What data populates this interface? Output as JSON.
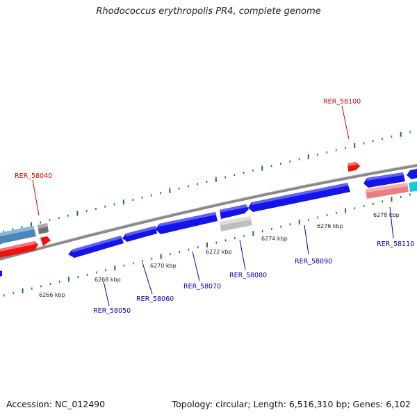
{
  "title": "Rhodococcus erythropolis PR4, complete genome",
  "footer": {
    "accession": "Accession: NC_012490",
    "summary": "Topology: circular; Length: 6,516,310 bp; Genes: 6,102"
  },
  "colors": {
    "background": "#ffffff",
    "backbone": "#888888",
    "tick": "#1a7a1a",
    "forward_label": "#cc0000",
    "reverse_label": "#0000aa",
    "gene_blue": "#1414e6",
    "gene_red": "#ee1111",
    "gene_grey": "#bfbfbf",
    "gene_pink": "#e88080",
    "gene_steel": "#4b86b8",
    "gene_cyan": "#18c8d8",
    "gene_darkgrey": "#707070"
  },
  "ruler_labels": [
    "6266 kbp",
    "6268 kbp",
    "6270 kbp",
    "6272 kbp",
    "6274 kbp",
    "6276 kbp",
    "6278 kbp"
  ],
  "gene_labels": {
    "forward": [
      "RER_58040",
      "RER_58100"
    ],
    "reverse": [
      "RER_58050",
      "RER_58060",
      "RER_58070",
      "RER_58080",
      "RER_58090",
      "RER_58110"
    ]
  }
}
